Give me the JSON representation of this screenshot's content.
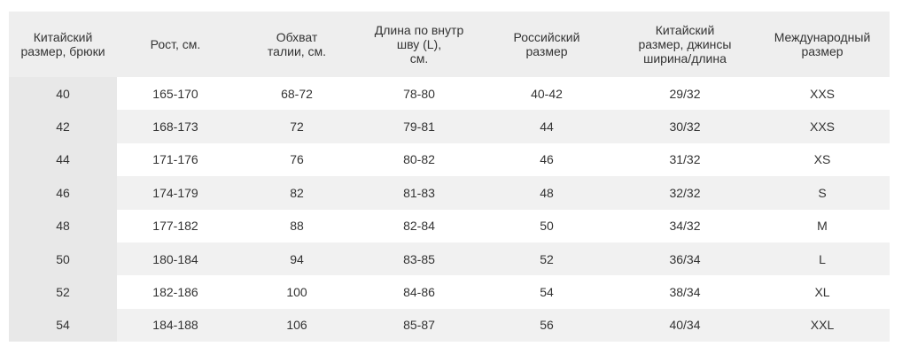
{
  "table": {
    "header": [
      "Китайский\nразмер, брюки",
      "Рост, см.",
      "Обхват\nталии, см.",
      "Длина по внутр\nшву (L),\nсм.",
      "Российский\nразмер",
      "Китайский\nразмер, джинсы\nширина/длина",
      "Международный\nразмер"
    ],
    "rows": [
      [
        "40",
        "165-170",
        "68-72",
        "78-80",
        "40-42",
        "29/32",
        "XXS"
      ],
      [
        "42",
        "168-173",
        "72",
        "79-81",
        "44",
        "30/32",
        "XXS"
      ],
      [
        "44",
        "171-176",
        "76",
        "80-82",
        "46",
        "31/32",
        "XS"
      ],
      [
        "46",
        "174-179",
        "82",
        "81-83",
        "48",
        "32/32",
        "S"
      ],
      [
        "48",
        "177-182",
        "88",
        "82-84",
        "50",
        "34/32",
        "M"
      ],
      [
        "50",
        "180-184",
        "94",
        "83-85",
        "52",
        "36/34",
        "L"
      ],
      [
        "52",
        "182-186",
        "100",
        "84-86",
        "54",
        "38/34",
        "XL"
      ],
      [
        "54",
        "184-188",
        "106",
        "85-87",
        "56",
        "40/34",
        "XXL"
      ]
    ]
  }
}
